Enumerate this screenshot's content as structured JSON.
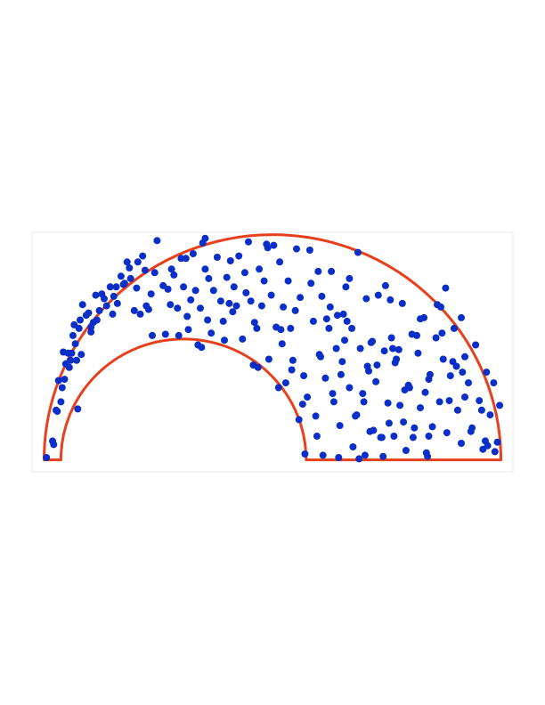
{
  "chart_data": {
    "type": "scatter",
    "title": "",
    "xlabel": "",
    "ylabel": "",
    "grid": false,
    "legend": "none",
    "xlim": [
      -0.5,
      19.5
    ],
    "ylim": [
      -0.5,
      9.6
    ],
    "colors": {
      "points": "#0a2ec8",
      "boundary": "#e8401c",
      "frame": "#e8e8e8"
    },
    "region": {
      "outer_center": [
        9.5,
        0
      ],
      "outer_radius": 9.5,
      "inner_center": [
        5.8,
        0
      ],
      "inner_radius": 5.1,
      "baseline_y": 0,
      "segments_x": [
        [
          0,
          0.5
        ],
        [
          10.9,
          19
        ]
      ]
    },
    "series": [
      {
        "x": [
          0.1,
          0.35,
          0.4,
          0.5,
          0.55,
          0.7,
          0.6,
          0.75,
          0.85,
          0.9,
          1.0,
          1.05,
          1.15,
          1.2,
          1.3,
          1.25,
          1.35,
          1.45,
          1.5,
          1.55,
          1.6,
          1.75,
          1.85,
          1.95,
          2.05,
          2.15,
          2.3,
          2.5,
          2.6,
          2.75,
          2.9,
          3.05,
          3.2,
          3.35,
          3.45,
          3.55,
          3.6,
          3.75,
          3.85,
          4.0,
          4.1,
          4.2,
          4.35,
          4.45,
          4.5,
          4.6,
          5.25,
          5.15,
          5.05,
          5.4,
          5.55,
          5.6,
          5.7,
          5.8,
          5.95,
          6.0,
          6.1,
          6.2,
          6.3,
          6.4,
          6.5,
          6.6,
          6.7,
          6.8,
          6.95,
          7.05,
          7.2,
          7.35,
          7.5,
          7.6,
          7.75,
          7.9,
          8.0,
          8.1,
          8.25,
          8.35,
          8.5,
          8.6,
          8.7,
          8.85,
          8.95,
          9.05,
          9.15,
          9.25,
          9.35,
          9.45,
          9.55,
          9.65,
          9.8,
          9.95,
          10.05,
          10.15,
          10.25,
          10.35,
          10.5,
          10.65,
          10.8,
          10.95,
          11.1,
          11.2,
          11.35,
          11.45,
          11.55,
          11.7,
          11.85,
          11.95,
          12.05,
          12.2,
          12.3,
          12.4,
          12.55,
          12.7,
          12.8,
          12.95,
          13.05,
          13.15,
          13.3,
          13.4,
          13.55,
          13.65,
          13.8,
          13.9,
          14.05,
          14.15,
          14.3,
          14.4,
          14.55,
          14.65,
          14.8,
          14.9,
          15.05,
          15.15,
          15.3,
          15.4,
          15.55,
          15.65,
          15.8,
          15.9,
          16.05,
          16.15,
          16.3,
          16.45,
          16.6,
          16.75,
          16.9,
          17.05,
          17.2,
          17.35,
          17.5,
          17.65,
          17.8,
          17.95,
          18.1,
          18.25,
          18.4,
          18.55,
          18.7,
          18.85,
          18.95,
          14.2,
          13.45,
          12.6,
          11.4,
          10.45,
          9.85,
          11.05,
          12.15,
          13.25,
          14.75,
          15.85,
          16.55,
          17.4,
          18.2,
          18.75,
          17.15,
          16.0,
          14.95,
          13.85,
          12.85,
          11.75,
          10.75,
          9.75,
          8.75,
          7.85,
          6.85,
          5.9,
          4.95,
          3.9,
          2.85,
          1.95,
          1.1,
          2.4,
          3.3,
          4.25,
          6.55,
          7.45,
          8.4,
          9.3,
          10.3,
          11.3,
          12.35,
          13.35,
          14.35,
          15.35,
          16.35,
          17.35,
          18.35,
          12.0,
          13.0,
          14.0,
          15.0,
          16.0,
          17.0,
          11.5,
          12.5,
          13.5,
          14.5,
          15.5,
          16.5,
          17.5,
          13.7,
          14.6,
          15.2,
          12.7,
          11.9,
          10.6,
          9.9,
          8.9,
          7.7,
          6.7,
          5.3,
          4.7,
          3.0,
          2.2,
          1.4,
          0.8,
          15.95,
          16.85,
          17.75,
          18.45,
          14.1,
          13.1,
          12.25,
          11.6,
          10.85,
          16.7,
          15.65,
          14.45,
          13.6,
          12.45
        ],
        "y": [
          0.1,
          0.8,
          0.65,
          2.1,
          2.05,
          2.45,
          3.35,
          3.05,
          3.4,
          4.05,
          4.5,
          3.9,
          4.5,
          5.25,
          4.9,
          5.7,
          4.2,
          5.55,
          5.9,
          4.45,
          6.55,
          6.1,
          6.2,
          5.6,
          5.8,
          6.95,
          6.3,
          6.8,
          6.5,
          7.3,
          6.9,
          6.6,
          7.75,
          7.45,
          8.35,
          8.1,
          7.65,
          6.3,
          7.25,
          6.15,
          8.6,
          8.0,
          6.35,
          7.0,
          5.25,
          7.9,
          6.55,
          7.2,
          5.3,
          7.8,
          6.4,
          5.25,
          8.5,
          7.3,
          6.05,
          5.5,
          6.75,
          8.7,
          7.15,
          4.85,
          6.4,
          9.15,
          8.05,
          5.9,
          5.35,
          7.15,
          8.55,
          6.7,
          5.05,
          7.7,
          8.4,
          7.3,
          6.5,
          8.6,
          5.1,
          7.9,
          9.2,
          6.7,
          4.0,
          5.55,
          8.05,
          6.5,
          7.55,
          9.1,
          4.25,
          6.95,
          9.05,
          5.6,
          8.35,
          6.45,
          3.25,
          7.55,
          5.55,
          4.2,
          8.9,
          6.85,
          3.55,
          2.65,
          7.45,
          5.85,
          1.0,
          4.45,
          6.9,
          3.45,
          5.55,
          7.95,
          2.45,
          6.1,
          1.45,
          4.15,
          7.3,
          3.05,
          5.55,
          1.85,
          8.75,
          4.7,
          2.45,
          6.8,
          1.2,
          5.0,
          3.3,
          6.95,
          0.95,
          4.6,
          2.4,
          6.75,
          1.0,
          4.25,
          2.3,
          6.6,
          0.4,
          3.15,
          5.3,
          1.35,
          4.5,
          2.2,
          6.0,
          0.3,
          3.6,
          1.4,
          5.15,
          2.45,
          4.25,
          1.15,
          3.55,
          5.55,
          2.1,
          0.7,
          4.35,
          3.25,
          1.35,
          4.85,
          2.5,
          0.45,
          3.7,
          1.9,
          3.25,
          0.75,
          2.3,
          7.35,
          3.95,
          5.85,
          7.95,
          6.3,
          5.5,
          8.85,
          4.7,
          2.8,
          4.65,
          2.85,
          5.35,
          3.7,
          2.1,
          0.35,
          3.95,
          1.0,
          1.6,
          4.0,
          0.55,
          5.95,
          2.35,
          3.05,
          5.8,
          6.25,
          7.65,
          8.5,
          7.35,
          8.35,
          6.15,
          5.4,
          4.2,
          7.0,
          7.4,
          6.5,
          4.75,
          5.85,
          7.05,
          8.95,
          3.8,
          1.85,
          3.6,
          0.2,
          1.55,
          0.95,
          6.55,
          6.0,
          0.8,
          2.8,
          1.9,
          0.95,
          2.95,
          3.4,
          4.15,
          4.35,
          5.05,
          3.75,
          4.7,
          5.25,
          6.45,
          2.65,
          1.25,
          4.1,
          3.05,
          7.65,
          6.45,
          1.7,
          4.9,
          3.9,
          6.6,
          9.35,
          8.05,
          9.25,
          7.3,
          5.9,
          2.15,
          4.55,
          0.15,
          2.5,
          1.2,
          0.6,
          0.15,
          0.05,
          0.1,
          0.2,
          0.25,
          7.25,
          5.95,
          5.15,
          4.95,
          6.15
        ]
      }
    ]
  }
}
